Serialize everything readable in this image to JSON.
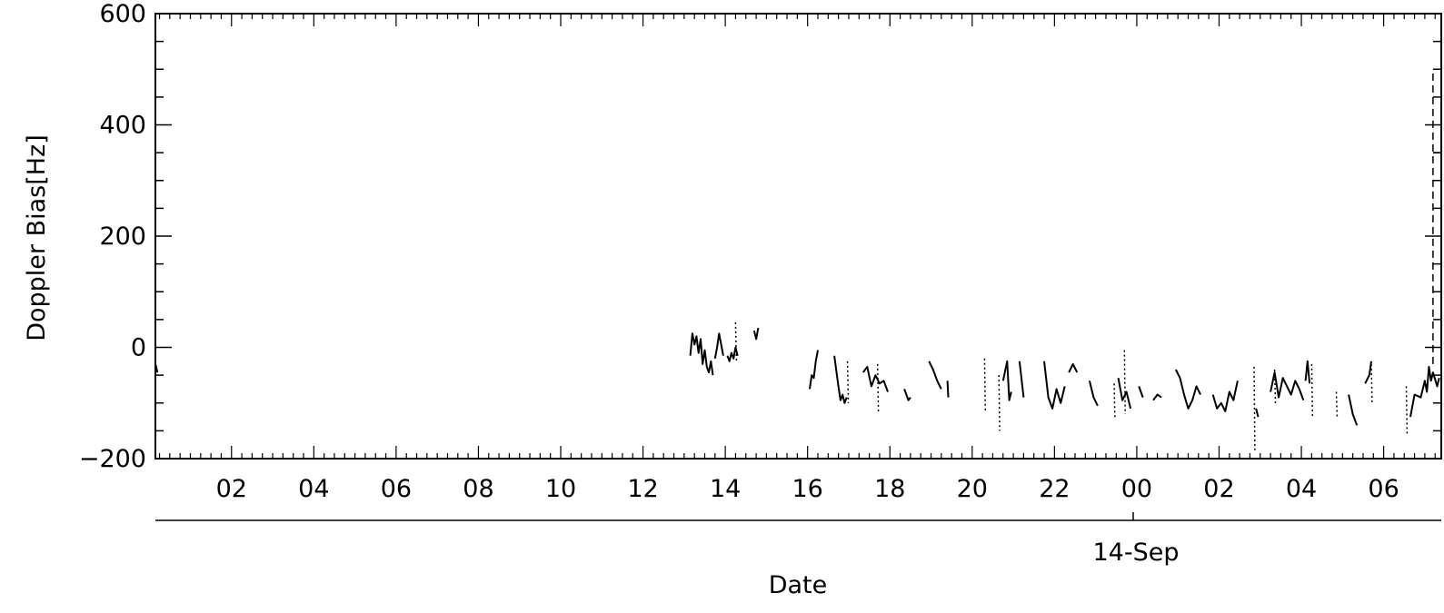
{
  "chart_data": {
    "type": "line",
    "title": "",
    "xlabel": "Date",
    "ylabel": "Doppler Bias[Hz]",
    "ylim": [
      -200,
      600
    ],
    "y_ticks": [
      "600",
      "400",
      "200",
      "0",
      "-200"
    ],
    "x_tick_labels": [
      "02",
      "04",
      "06",
      "08",
      "10",
      "12",
      "14",
      "16",
      "18",
      "20",
      "22",
      "00",
      "02",
      "04",
      "06"
    ],
    "date_label": "14-Sep",
    "x_unit": "hours from 00:00 of the day before 14-Sep",
    "xlim": [
      0.15,
      31.4
    ],
    "grid": false,
    "legend": "none",
    "colors": {
      "line": "#000000",
      "axis": "#000000",
      "background": "#ffffff"
    },
    "series": [
      {
        "segments": [
          {
            "style": "solid",
            "x": [
              0.15,
              0.2
            ],
            "y": [
              -30,
              -45
            ]
          },
          {
            "style": "solid",
            "x": [
              13.15,
              13.2,
              13.25,
              13.3,
              13.35,
              13.4,
              13.45,
              13.5,
              13.55,
              13.6,
              13.65,
              13.7
            ],
            "y": [
              -15,
              25,
              5,
              20,
              -10,
              15,
              -30,
              -5,
              -35,
              -45,
              -25,
              -50
            ]
          },
          {
            "style": "solid",
            "x": [
              13.75,
              13.8,
              13.85,
              13.9,
              13.95
            ],
            "y": [
              -20,
              0,
              25,
              5,
              -15
            ]
          },
          {
            "style": "solid",
            "x": [
              14.05,
              14.1,
              14.15,
              14.2,
              14.25,
              14.3
            ],
            "y": [
              -15,
              -25,
              -10,
              -20,
              0,
              -15
            ]
          },
          {
            "style": "dotted",
            "x": [
              14.25,
              14.27
            ],
            "y": [
              45,
              -25
            ]
          },
          {
            "style": "solid",
            "x": [
              14.7,
              14.75,
              14.8
            ],
            "y": [
              30,
              15,
              35
            ]
          },
          {
            "style": "solid",
            "x": [
              16.05,
              16.1,
              16.15,
              16.2,
              16.25
            ],
            "y": [
              -75,
              -50,
              -55,
              -25,
              -5
            ]
          },
          {
            "style": "solid",
            "x": [
              16.65,
              16.75,
              16.8,
              16.85,
              16.9,
              16.95
            ],
            "y": [
              -15,
              -70,
              -95,
              -85,
              -100,
              -90
            ]
          },
          {
            "style": "dotted",
            "x": [
              16.97,
              16.99
            ],
            "y": [
              -25,
              -100
            ]
          },
          {
            "style": "solid",
            "x": [
              17.35,
              17.45,
              17.55,
              17.65,
              17.75,
              17.85,
              17.95
            ],
            "y": [
              -45,
              -35,
              -70,
              -50,
              -65,
              -60,
              -80
            ]
          },
          {
            "style": "dotted",
            "x": [
              17.7,
              17.72
            ],
            "y": [
              -30,
              -115
            ]
          },
          {
            "style": "solid",
            "x": [
              18.35,
              18.45,
              18.5
            ],
            "y": [
              -75,
              -95,
              -90
            ]
          },
          {
            "style": "solid",
            "x": [
              18.95,
              19.05,
              19.15,
              19.25
            ],
            "y": [
              -25,
              -40,
              -60,
              -75
            ]
          },
          {
            "style": "solid",
            "x": [
              19.4,
              19.42
            ],
            "y": [
              -60,
              -90
            ]
          },
          {
            "style": "dotted",
            "x": [
              20.3,
              20.32
            ],
            "y": [
              -20,
              -115
            ]
          },
          {
            "style": "dotted",
            "x": [
              20.65,
              20.67
            ],
            "y": [
              -50,
              -150
            ]
          },
          {
            "style": "solid",
            "x": [
              20.75,
              20.85,
              20.9,
              20.95
            ],
            "y": [
              -60,
              -25,
              -95,
              -80
            ]
          },
          {
            "style": "solid",
            "x": [
              21.15,
              21.25
            ],
            "y": [
              -25,
              -90
            ]
          },
          {
            "style": "solid",
            "x": [
              21.75,
              21.85,
              21.95,
              22.05,
              22.15,
              22.25
            ],
            "y": [
              -25,
              -90,
              -110,
              -75,
              -100,
              -70
            ]
          },
          {
            "style": "solid",
            "x": [
              22.35,
              22.45,
              22.55
            ],
            "y": [
              -45,
              -30,
              -45
            ]
          },
          {
            "style": "solid",
            "x": [
              22.85,
              22.95,
              23.05
            ],
            "y": [
              -60,
              -90,
              -105
            ]
          },
          {
            "style": "dotted",
            "x": [
              23.45,
              23.47
            ],
            "y": [
              -65,
              -130
            ]
          },
          {
            "style": "solid",
            "x": [
              23.55,
              23.65,
              23.75,
              23.85
            ],
            "y": [
              -55,
              -95,
              -80,
              -110
            ]
          },
          {
            "style": "dotted",
            "x": [
              23.7,
              23.72
            ],
            "y": [
              -5,
              -120
            ]
          },
          {
            "style": "solid",
            "x": [
              24.05,
              24.15
            ],
            "y": [
              -70,
              -90
            ]
          },
          {
            "style": "solid",
            "x": [
              24.4,
              24.5,
              24.6
            ],
            "y": [
              -95,
              -85,
              -90
            ]
          },
          {
            "style": "solid",
            "x": [
              24.95,
              25.05,
              25.15,
              25.25,
              25.35,
              25.45,
              25.55
            ],
            "y": [
              -40,
              -55,
              -85,
              -110,
              -95,
              -70,
              -85
            ]
          },
          {
            "style": "solid",
            "x": [
              25.85,
              25.95,
              26.05,
              26.15,
              26.25,
              26.35,
              26.45
            ],
            "y": [
              -85,
              -110,
              -100,
              -115,
              -80,
              -95,
              -60
            ]
          },
          {
            "style": "dotted",
            "x": [
              26.85,
              26.87
            ],
            "y": [
              -35,
              -185
            ]
          },
          {
            "style": "solid",
            "x": [
              26.9,
              26.95
            ],
            "y": [
              -110,
              -125
            ]
          },
          {
            "style": "solid",
            "x": [
              27.25,
              27.35,
              27.45,
              27.55,
              27.65,
              27.75,
              27.85,
              27.95,
              28.05
            ],
            "y": [
              -80,
              -45,
              -90,
              -55,
              -70,
              -85,
              -60,
              -75,
              -95
            ]
          },
          {
            "style": "dotted",
            "x": [
              27.35,
              27.37
            ],
            "y": [
              -40,
              -100
            ]
          },
          {
            "style": "solid",
            "x": [
              28.1,
              28.15,
              28.2
            ],
            "y": [
              -60,
              -25,
              -65
            ]
          },
          {
            "style": "dotted",
            "x": [
              28.25,
              28.27
            ],
            "y": [
              -30,
              -125
            ]
          },
          {
            "style": "dotted",
            "x": [
              28.85,
              28.87
            ],
            "y": [
              -80,
              -125
            ]
          },
          {
            "style": "solid",
            "x": [
              29.15,
              29.25,
              29.35
            ],
            "y": [
              -85,
              -120,
              -140
            ]
          },
          {
            "style": "solid",
            "x": [
              29.55,
              29.65,
              29.7
            ],
            "y": [
              -65,
              -50,
              -25
            ]
          },
          {
            "style": "dotted",
            "x": [
              29.7,
              29.72
            ],
            "y": [
              -30,
              -100
            ]
          },
          {
            "style": "dotted",
            "x": [
              30.55,
              30.57
            ],
            "y": [
              -70,
              -155
            ]
          },
          {
            "style": "solid",
            "x": [
              30.65,
              30.75,
              30.9,
              31.0,
              31.05,
              31.1,
              31.15,
              31.2,
              31.3,
              31.35
            ],
            "y": [
              -125,
              -85,
              -90,
              -60,
              -80,
              -35,
              -60,
              -45,
              -70,
              -55
            ]
          },
          {
            "style": "dashed",
            "x": [
              31.2,
              31.2,
              31.4
            ],
            "y": [
              -30,
              500,
              500
            ]
          },
          {
            "style": "dashed",
            "x": [
              31.2,
              31.4
            ],
            "y": [
              350,
              350
            ]
          }
        ]
      }
    ]
  }
}
